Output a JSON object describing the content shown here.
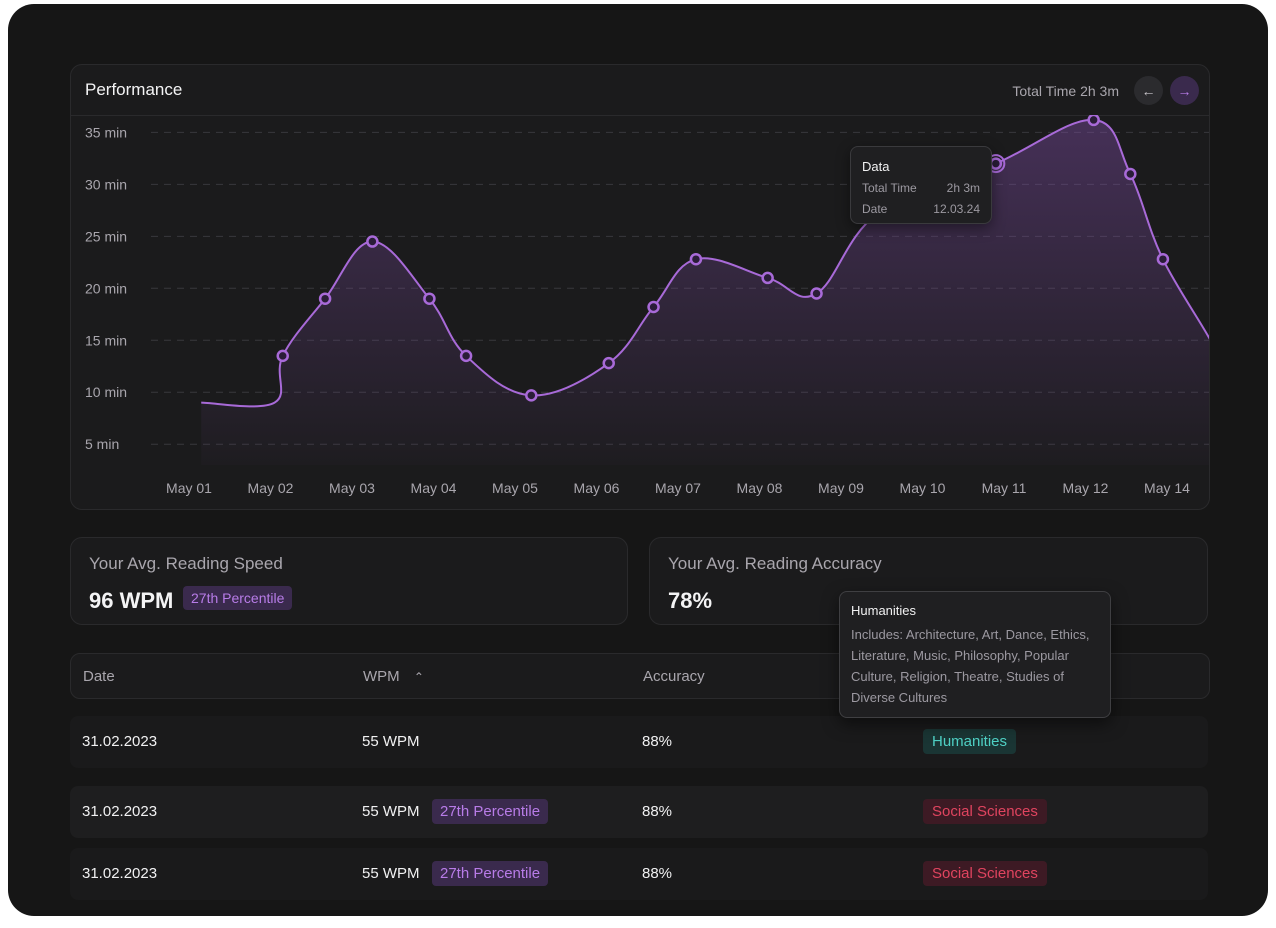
{
  "performance": {
    "title": "Performance",
    "total_time": "Total Time 2h 3m",
    "prev_icon": "arrow-left-icon",
    "next_icon": "arrow-right-icon"
  },
  "chart_data": {
    "type": "area",
    "x": [
      "May 01",
      "May 02",
      "May 03",
      "May 04",
      "May 05",
      "May 06",
      "May 07",
      "May 08",
      "May 09",
      "May 10",
      "May 11",
      "May 12",
      "May 14"
    ],
    "y_ticks": [
      "35 min",
      "30 min",
      "25 min",
      "20 min",
      "15 min",
      "10 min",
      "5 min"
    ],
    "series": [
      {
        "points": [
          {
            "x": 0.15,
            "y": 9
          },
          {
            "x": 1.05,
            "y": 9
          },
          {
            "x": 1.15,
            "y": 13.5
          },
          {
            "x": 1.67,
            "y": 19
          },
          {
            "x": 2.25,
            "y": 24.5
          },
          {
            "x": 2.95,
            "y": 19
          },
          {
            "x": 3.4,
            "y": 13.5
          },
          {
            "x": 4.2,
            "y": 9.7
          },
          {
            "x": 5.15,
            "y": 12.8
          },
          {
            "x": 5.7,
            "y": 18.2
          },
          {
            "x": 6.22,
            "y": 22.8
          },
          {
            "x": 7.1,
            "y": 21
          },
          {
            "x": 7.7,
            "y": 19.5
          },
          {
            "x": 8.45,
            "y": 27.2
          },
          {
            "x": 9.9,
            "y": 32
          },
          {
            "x": 11.1,
            "y": 36.2
          },
          {
            "x": 11.55,
            "y": 31
          },
          {
            "x": 11.95,
            "y": 22.8
          },
          {
            "x": 12.6,
            "y": 14
          }
        ],
        "color": "#a86ad8"
      }
    ],
    "ylim": [
      3,
      36
    ],
    "grid": true,
    "tooltip": {
      "title": "Data",
      "rows": [
        {
          "label": "Total Time",
          "value": "2h 3m"
        },
        {
          "label": "Date",
          "value": "12.03.24"
        }
      ]
    }
  },
  "stats": {
    "speed_label": "Your Avg. Reading Speed",
    "speed_value": "96 WPM",
    "speed_percentile": "27th Percentile",
    "accuracy_label": "Your Avg. Reading Accuracy",
    "accuracy_value": "78%"
  },
  "table": {
    "headers": {
      "date": "Date",
      "wpm": "WPM",
      "accuracy": "Accuracy"
    },
    "sort_icon": "chevron-up-icon",
    "rows": [
      {
        "date": "31.02.2023",
        "wpm": "55 WPM",
        "percentile": "",
        "accuracy": "88%",
        "category": "Humanities"
      },
      {
        "date": "31.02.2023",
        "wpm": "55 WPM",
        "percentile": "27th Percentile",
        "accuracy": "88%",
        "category": "Social Sciences"
      },
      {
        "date": "31.02.2023",
        "wpm": "55 WPM",
        "percentile": "27th Percentile",
        "accuracy": "88%",
        "category": "Social Sciences"
      }
    ]
  },
  "category_tooltip": {
    "title": "Humanities",
    "body": "Includes: Architecture, Art, Dance, Ethics, Literature, Music, Philosophy, Popular Culture, Religion, Theatre, Studies of Diverse Cultures"
  },
  "colors": {
    "background": "#161616",
    "card": "#1b1b1c",
    "accent": "#a86ad8",
    "humanities": "#4fd1c5",
    "social_sciences": "#e0445f"
  }
}
